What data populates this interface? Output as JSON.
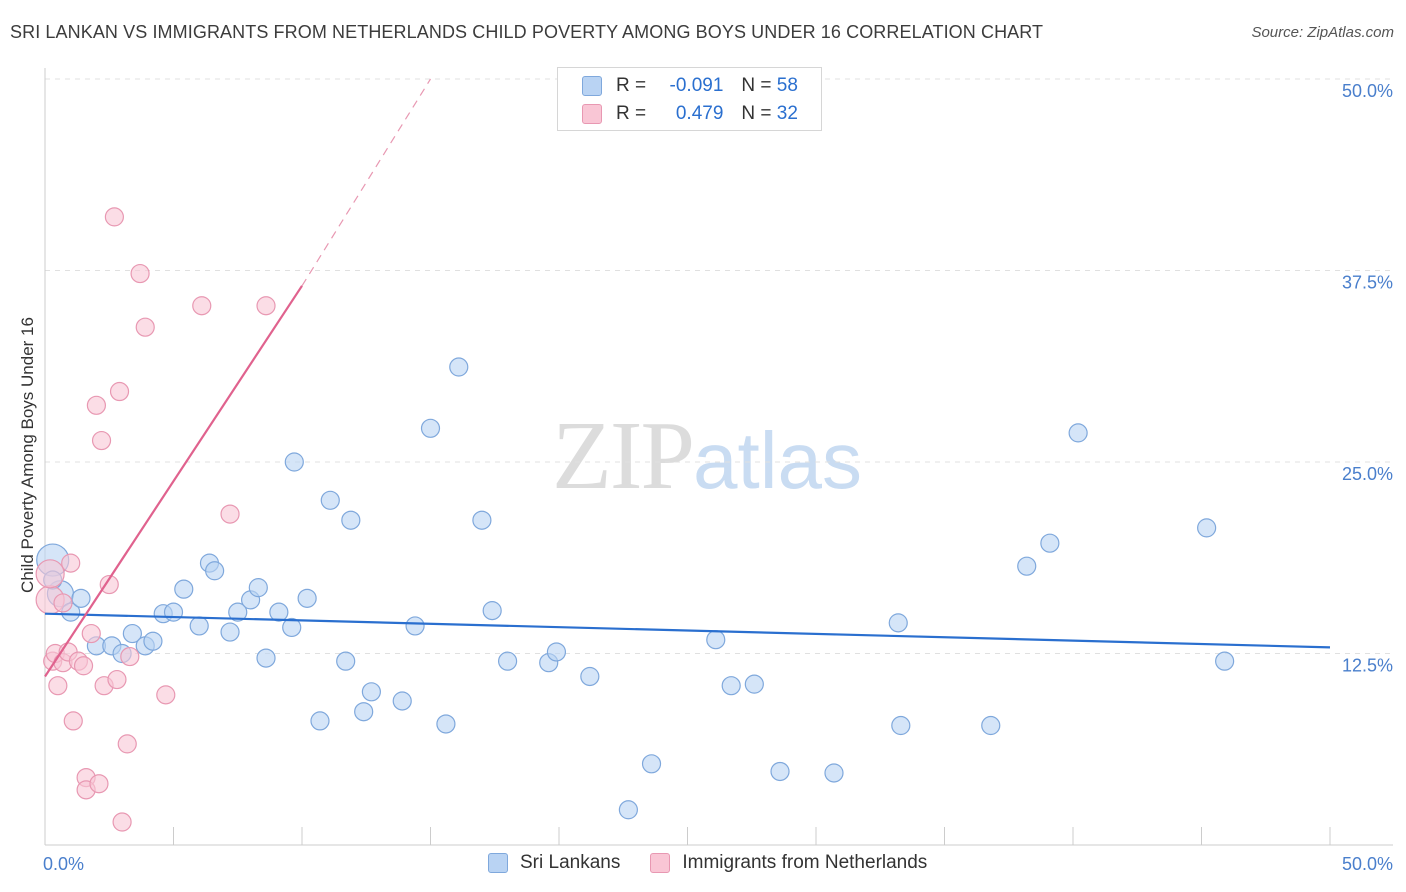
{
  "title": "SRI LANKAN VS IMMIGRANTS FROM NETHERLANDS CHILD POVERTY AMONG BOYS UNDER 16 CORRELATION CHART",
  "source": "Source: ZipAtlas.com",
  "watermark": {
    "zip": "ZIP",
    "atlas": "atlas"
  },
  "colors": {
    "blue_fill": "#b9d3f3",
    "blue_stroke": "#7fa8dc",
    "blue_line": "#2a6fcf",
    "pink_fill": "#f9c6d5",
    "pink_stroke": "#e898b2",
    "pink_line": "#e0628e",
    "grid": "#e0e0e0",
    "tick_text": "#4a7fcc"
  },
  "legend": {
    "rows": [
      {
        "r_label": "R =",
        "r_value": "-0.091",
        "n_label": "N =",
        "n_value": "58"
      },
      {
        "r_label": "R =",
        "r_value": "0.479",
        "n_label": "N =",
        "n_value": "32"
      }
    ]
  },
  "bottom_legend": [
    "Sri Lankans",
    "Immigrants from Netherlands"
  ],
  "chart_data": {
    "type": "scatter",
    "ylabel": "Child Poverty Among Boys Under 16",
    "xlim": [
      0,
      50
    ],
    "ylim": [
      0,
      50
    ],
    "x_tick_labels": [
      "0.0%",
      "50.0%"
    ],
    "y_ticks": [
      12.5,
      25.0,
      37.5,
      50.0
    ],
    "y_tick_labels": [
      "12.5%",
      "25.0%",
      "37.5%",
      "50.0%"
    ],
    "grid": true,
    "legend_position": "top-center",
    "series": [
      {
        "name": "Sri Lankans",
        "points": [
          [
            0.3,
            18.6
          ],
          [
            0.6,
            16.4
          ],
          [
            1.0,
            15.2
          ],
          [
            1.4,
            16.1
          ],
          [
            2.0,
            13.0
          ],
          [
            2.6,
            13.0
          ],
          [
            3.0,
            12.5
          ],
          [
            3.4,
            13.8
          ],
          [
            3.9,
            13.0
          ],
          [
            4.2,
            13.3
          ],
          [
            4.6,
            15.1
          ],
          [
            5.0,
            15.2
          ],
          [
            5.4,
            16.7
          ],
          [
            6.0,
            14.3
          ],
          [
            6.4,
            18.4
          ],
          [
            6.6,
            17.9
          ],
          [
            7.2,
            13.9
          ],
          [
            7.5,
            15.2
          ],
          [
            8.0,
            16.0
          ],
          [
            8.3,
            16.8
          ],
          [
            8.6,
            12.2
          ],
          [
            9.1,
            15.2
          ],
          [
            9.6,
            14.2
          ],
          [
            9.7,
            25.0
          ],
          [
            10.2,
            16.1
          ],
          [
            10.7,
            8.1
          ],
          [
            11.1,
            22.5
          ],
          [
            11.7,
            12.0
          ],
          [
            11.9,
            21.2
          ],
          [
            12.4,
            8.7
          ],
          [
            12.7,
            10.0
          ],
          [
            13.9,
            9.4
          ],
          [
            14.4,
            14.3
          ],
          [
            15.0,
            27.2
          ],
          [
            15.6,
            7.9
          ],
          [
            16.1,
            31.2
          ],
          [
            17.0,
            21.2
          ],
          [
            17.4,
            15.3
          ],
          [
            18.0,
            12.0
          ],
          [
            19.6,
            11.9
          ],
          [
            19.9,
            12.6
          ],
          [
            21.2,
            11.0
          ],
          [
            22.7,
            2.3
          ],
          [
            23.6,
            5.3
          ],
          [
            26.1,
            13.4
          ],
          [
            26.7,
            10.4
          ],
          [
            27.6,
            10.5
          ],
          [
            28.6,
            4.8
          ],
          [
            30.7,
            4.7
          ],
          [
            33.2,
            14.5
          ],
          [
            33.3,
            7.8
          ],
          [
            36.8,
            7.8
          ],
          [
            38.2,
            18.2
          ],
          [
            39.1,
            19.7
          ],
          [
            40.2,
            26.9
          ],
          [
            45.2,
            20.7
          ],
          [
            45.9,
            12.0
          ],
          [
            0.3,
            17.3
          ]
        ],
        "trend": {
          "x": [
            0,
            50
          ],
          "y": [
            15.1,
            12.9
          ]
        }
      },
      {
        "name": "Immigrants from Netherlands",
        "points": [
          [
            0.2,
            16.0
          ],
          [
            0.3,
            12.0
          ],
          [
            0.4,
            12.5
          ],
          [
            0.5,
            10.4
          ],
          [
            0.7,
            11.9
          ],
          [
            0.7,
            15.8
          ],
          [
            0.9,
            12.6
          ],
          [
            1.0,
            18.4
          ],
          [
            1.1,
            8.1
          ],
          [
            1.3,
            12.0
          ],
          [
            1.5,
            11.7
          ],
          [
            1.6,
            4.4
          ],
          [
            1.6,
            3.6
          ],
          [
            1.8,
            13.8
          ],
          [
            2.0,
            28.7
          ],
          [
            2.1,
            4.0
          ],
          [
            2.2,
            26.4
          ],
          [
            2.3,
            10.4
          ],
          [
            2.5,
            17.0
          ],
          [
            2.7,
            41.0
          ],
          [
            2.8,
            10.8
          ],
          [
            2.9,
            29.6
          ],
          [
            3.0,
            1.5
          ],
          [
            3.2,
            6.6
          ],
          [
            3.3,
            12.3
          ],
          [
            3.7,
            37.3
          ],
          [
            3.9,
            33.8
          ],
          [
            4.7,
            9.8
          ],
          [
            6.1,
            35.2
          ],
          [
            7.2,
            21.6
          ],
          [
            8.6,
            35.2
          ],
          [
            0.2,
            17.7
          ]
        ],
        "trend": {
          "x": [
            0,
            10.0
          ],
          "y": [
            11.0,
            36.5
          ]
        },
        "trend_extension": {
          "x": [
            10.0,
            15.0
          ],
          "y": [
            36.5,
            50.0
          ]
        }
      }
    ]
  }
}
